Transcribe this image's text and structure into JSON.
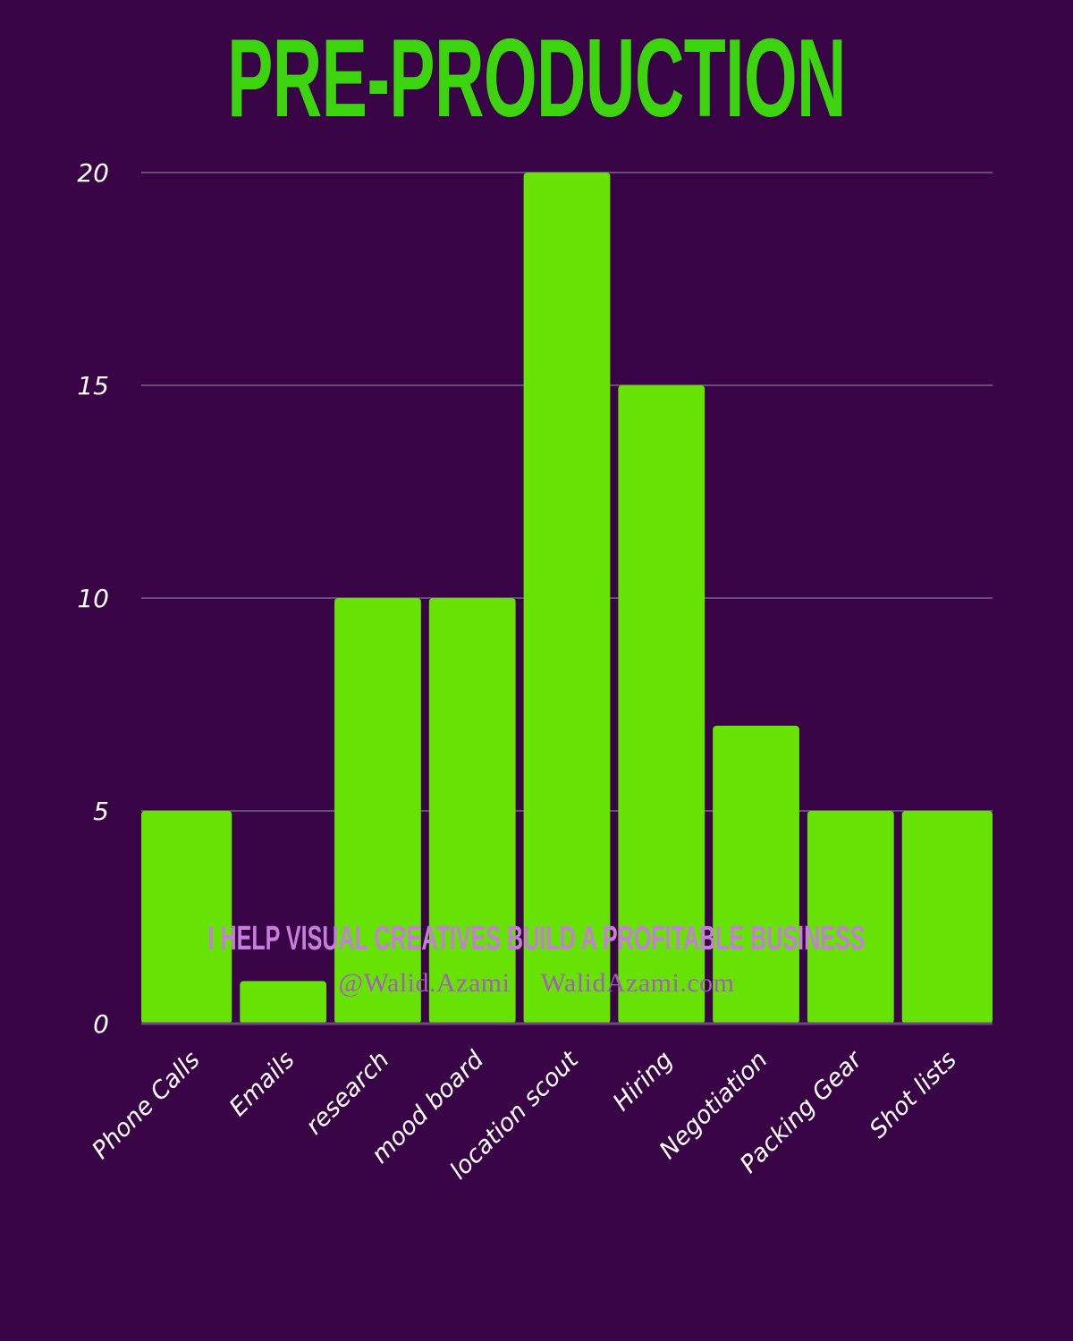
{
  "colors": {
    "background": "#380445",
    "title": "#3bd40f",
    "bar": "#66e205",
    "grid": "#6b4a7c",
    "tick": "#ffffff",
    "footer_primary": "#c77ddb",
    "footer_secondary": "#a95cbf"
  },
  "chart_data": {
    "type": "bar",
    "title": "PRE-PRODUCTION",
    "categories": [
      "Phone Calls",
      "Emails",
      "research",
      "mood board",
      "location scout",
      "Hiring",
      "Negotiation",
      "Packing Gear",
      "Shot lists"
    ],
    "values": [
      5,
      1,
      10,
      10,
      20,
      15,
      7,
      5,
      5
    ],
    "xlabel": "",
    "ylabel": "",
    "ylim": [
      0,
      20
    ],
    "yticks": [
      0,
      5,
      10,
      15,
      20
    ],
    "grid": true,
    "legend": "none"
  },
  "footer": {
    "tagline": "I HELP VISUAL CREATIVES BUILD A PROFITABLE BUSINESS",
    "handle": "@Walid.Azami",
    "website": "WalidAzami.com"
  }
}
